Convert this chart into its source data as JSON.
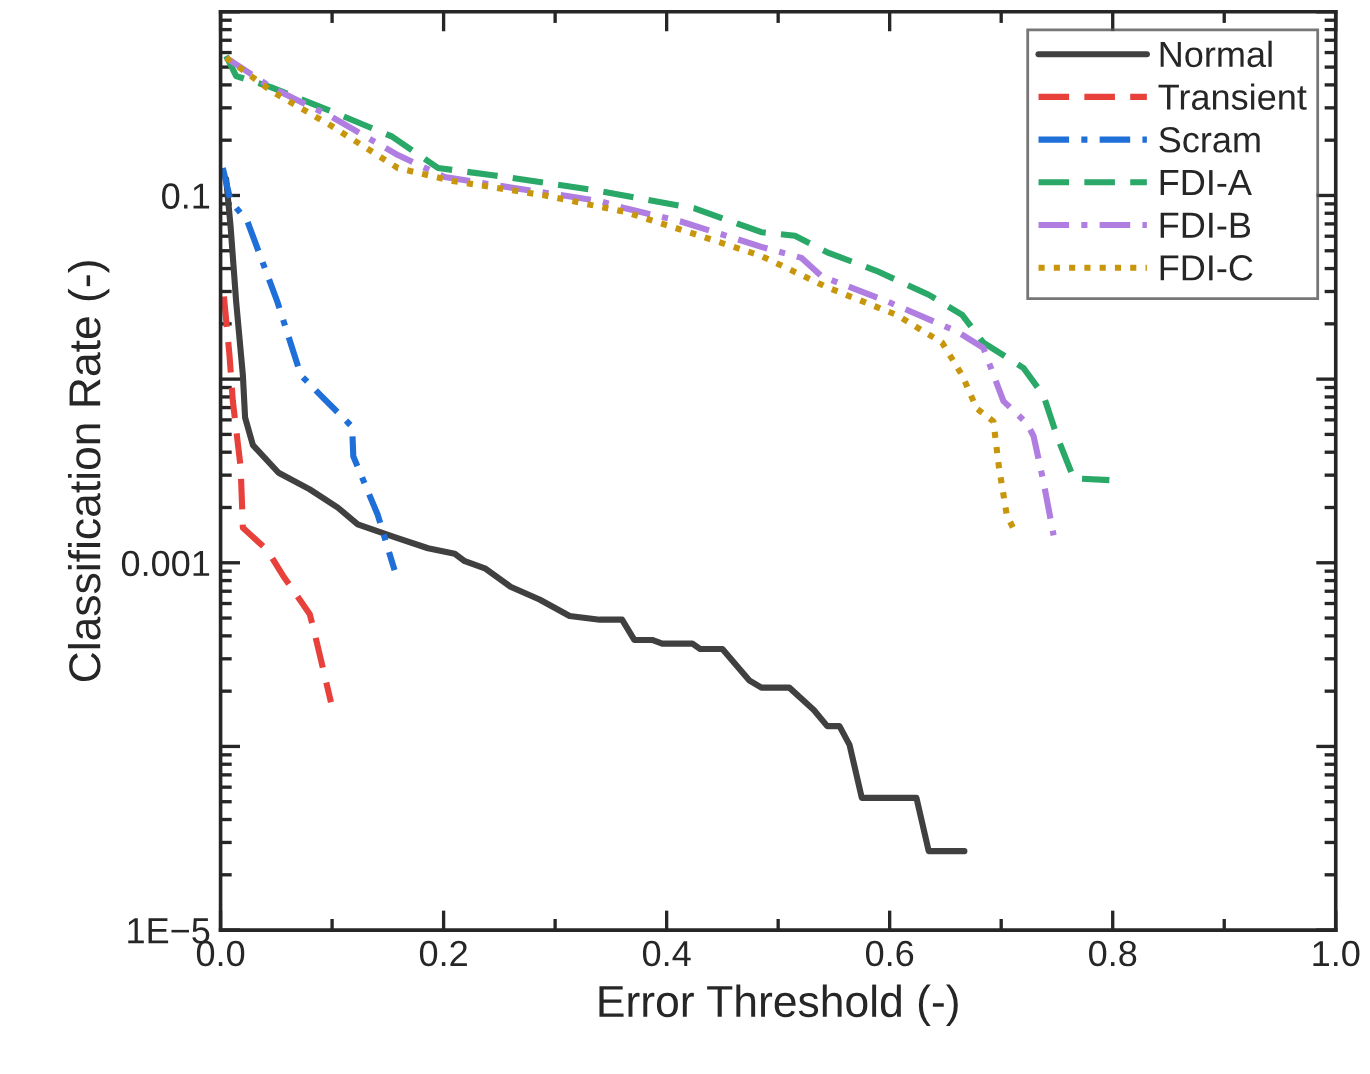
{
  "chart_data": {
    "type": "line",
    "xlabel": "Error Threshold (-)",
    "ylabel": "Classification Rate (-)",
    "log": "y",
    "xlim": [
      0,
      1
    ],
    "ylim": [
      1e-05,
      1
    ],
    "xticks": [
      {
        "value": 0,
        "label": "0.0"
      },
      {
        "value": 0.1,
        "label": null
      },
      {
        "value": 0.2,
        "label": "0.2"
      },
      {
        "value": 0.3,
        "label": null
      },
      {
        "value": 0.4,
        "label": "0.4"
      },
      {
        "value": 0.5,
        "label": null
      },
      {
        "value": 0.6,
        "label": "0.6"
      },
      {
        "value": 0.7,
        "label": null
      },
      {
        "value": 0.8,
        "label": "0.8"
      },
      {
        "value": 0.9,
        "label": null
      },
      {
        "value": 1,
        "label": "1.0"
      }
    ],
    "yticks": [
      {
        "value": 1e-05,
        "label": "1E−5"
      },
      {
        "value": 0.0001,
        "label": null
      },
      {
        "value": 0.001,
        "label": "0.001"
      },
      {
        "value": 0.01,
        "label": null
      },
      {
        "value": 0.1,
        "label": "0.1"
      },
      {
        "value": 1,
        "label": null
      }
    ],
    "grid": false,
    "legend": "top right",
    "marker": "none",
    "series": [
      {
        "name": "Normal",
        "color": "#404040",
        "line_style": "solid",
        "x": [
          0.005,
          0.009,
          0.014,
          0.02,
          0.022,
          0.029,
          0.052,
          0.08,
          0.105,
          0.123,
          0.156,
          0.186,
          0.21,
          0.219,
          0.237,
          0.26,
          0.286,
          0.313,
          0.34,
          0.36,
          0.371,
          0.387,
          0.396,
          0.423,
          0.43,
          0.45,
          0.474,
          0.485,
          0.51,
          0.532,
          0.544,
          0.555,
          0.564,
          0.575,
          0.624,
          0.635,
          0.667
        ],
        "values": [
          0.123,
          0.0676,
          0.0263,
          0.0105,
          0.00617,
          0.00437,
          0.00309,
          0.00251,
          0.002,
          0.00162,
          0.00138,
          0.0012,
          0.00112,
          0.00102,
          0.000933,
          0.000741,
          0.000631,
          0.000513,
          0.00049,
          0.00049,
          0.00038,
          0.00038,
          0.000363,
          0.000363,
          0.000339,
          0.000339,
          0.000229,
          0.000209,
          0.000209,
          0.000158,
          0.000129,
          0.000129,
          0.000102,
          5.25e-05,
          5.25e-05,
          2.69e-05,
          2.69e-05
        ]
      },
      {
        "name": "Transient",
        "color": "#e8413c",
        "line_style": "dashed",
        "x": [
          0.003,
          0.008,
          0.011,
          0.018,
          0.02,
          0.042,
          0.056,
          0.08,
          0.085,
          0.099
        ],
        "values": [
          0.0282,
          0.0135,
          0.00759,
          0.00331,
          0.00155,
          0.00117,
          0.000851,
          0.000525,
          0.000398,
          0.000174
        ]
      },
      {
        "name": "Scram",
        "color": "#1f6fd8",
        "line_style": "dashdot",
        "x": [
          0.002,
          0.009,
          0.024,
          0.051,
          0.072,
          0.09,
          0.118,
          0.119,
          0.141,
          0.156
        ],
        "values": [
          0.141,
          0.0933,
          0.0724,
          0.0263,
          0.0105,
          0.00813,
          0.0055,
          0.0038,
          0.00182,
          0.000912
        ]
      },
      {
        "name": "FDI-A",
        "color": "#2aa868",
        "line_style": "dashed",
        "x": [
          0.005,
          0.014,
          0.045,
          0.099,
          0.154,
          0.195,
          0.244,
          0.335,
          0.425,
          0.485,
          0.515,
          0.544,
          0.588,
          0.635,
          0.665,
          0.684,
          0.72,
          0.738,
          0.75,
          0.765,
          0.797
        ],
        "values": [
          0.575,
          0.447,
          0.389,
          0.288,
          0.209,
          0.141,
          0.129,
          0.107,
          0.0851,
          0.0631,
          0.0603,
          0.049,
          0.0389,
          0.0288,
          0.0224,
          0.0158,
          0.0115,
          0.00813,
          0.0049,
          0.00288,
          0.00282
        ]
      },
      {
        "name": "FDI-B",
        "color": "#b07ee0",
        "line_style": "dashdot",
        "x": [
          0.005,
          0.045,
          0.099,
          0.159,
          0.201,
          0.262,
          0.34,
          0.363,
          0.412,
          0.485,
          0.521,
          0.539,
          0.599,
          0.66,
          0.684,
          0.702,
          0.723,
          0.729,
          0.738,
          0.747
        ],
        "values": [
          0.562,
          0.389,
          0.269,
          0.166,
          0.126,
          0.11,
          0.0933,
          0.0851,
          0.0724,
          0.0525,
          0.0457,
          0.0363,
          0.0263,
          0.0182,
          0.0148,
          0.00759,
          0.00575,
          0.0049,
          0.00275,
          0.00141
        ]
      },
      {
        "name": "FDI-C",
        "color": "#c8960c",
        "line_style": "dotted",
        "x": [
          0.005,
          0.045,
          0.099,
          0.159,
          0.208,
          0.291,
          0.363,
          0.43,
          0.485,
          0.544,
          0.606,
          0.647,
          0.665,
          0.678,
          0.693,
          0.698,
          0.705,
          0.714
        ],
        "values": [
          0.562,
          0.372,
          0.24,
          0.141,
          0.12,
          0.1,
          0.0813,
          0.0603,
          0.0468,
          0.0316,
          0.0224,
          0.0158,
          0.0105,
          0.00692,
          0.00589,
          0.00331,
          0.00182,
          0.00141
        ]
      }
    ]
  }
}
